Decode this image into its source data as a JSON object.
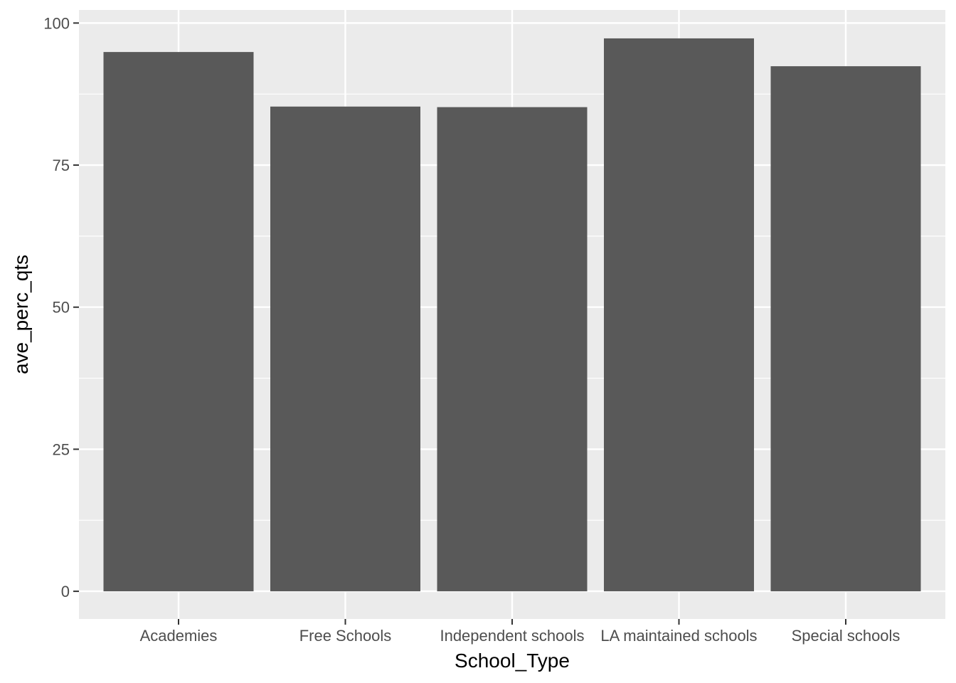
{
  "chart_data": {
    "type": "bar",
    "categories": [
      "Academies",
      "Free Schools",
      "Independent schools",
      "LA maintained schools",
      "Special schools"
    ],
    "values": [
      94.9,
      85.3,
      85.2,
      97.3,
      92.4
    ],
    "title": "",
    "xlabel": "School_Type",
    "ylabel": "ave_perc_qts",
    "ylim": [
      -4.87,
      102.3
    ],
    "yticks": [
      0,
      25,
      50,
      75,
      100
    ],
    "grid": true,
    "colors": {
      "panel_background": "#ebebeb",
      "grid_line": "#ffffff",
      "bar_fill": "#595959",
      "tick_text": "#4d4d4d",
      "axis_title": "#000000",
      "tick_mark": "#333333"
    }
  }
}
